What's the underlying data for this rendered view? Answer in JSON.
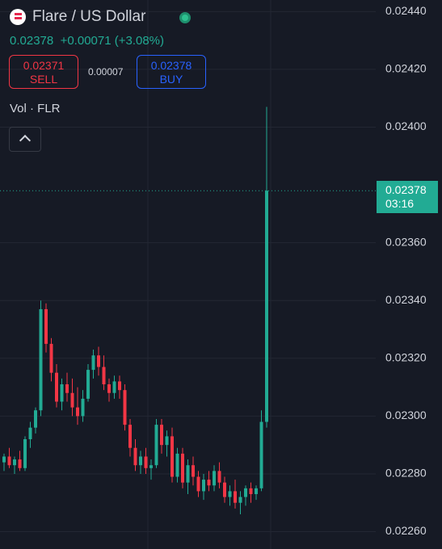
{
  "header": {
    "title": "Flare / US Dollar",
    "price": "0.02378",
    "change": "+0.00071 (+3.08%)"
  },
  "trade": {
    "sell_price": "0.02371",
    "sell_label": "SELL",
    "spread": "0.00007",
    "buy_price": "0.02378",
    "buy_label": "BUY"
  },
  "indicator": "Vol · FLR",
  "chart_data": {
    "type": "candlestick",
    "open": [
      0.02284,
      0.02286,
      0.02283,
      0.02285,
      0.02282,
      0.02292,
      0.02296,
      0.02302,
      0.02337,
      0.02325,
      0.02315,
      0.02305,
      0.02311,
      0.02308,
      0.02303,
      0.023,
      0.02306,
      0.02316,
      0.02321,
      0.02317,
      0.02311,
      0.02308,
      0.02312,
      0.02309,
      0.02297,
      0.02289,
      0.02283,
      0.02286,
      0.02282,
      0.02283,
      0.02297,
      0.0229,
      0.02293,
      0.02279,
      0.02287,
      0.02277,
      0.02283,
      0.02279,
      0.02274,
      0.02278,
      0.02276,
      0.02281,
      0.02277,
      0.02272,
      0.02274,
      0.0227,
      0.02272,
      0.02275,
      0.02273,
      0.02275,
      0.02298
    ],
    "high": [
      0.02287,
      0.02289,
      0.02286,
      0.02288,
      0.02293,
      0.02298,
      0.02303,
      0.0234,
      0.02339,
      0.02327,
      0.02318,
      0.02313,
      0.02315,
      0.02313,
      0.0231,
      0.02309,
      0.02318,
      0.02323,
      0.02324,
      0.02321,
      0.02313,
      0.02314,
      0.02314,
      0.02311,
      0.02299,
      0.02292,
      0.02288,
      0.02289,
      0.02285,
      0.02299,
      0.02299,
      0.02295,
      0.02296,
      0.02289,
      0.02289,
      0.02285,
      0.02286,
      0.02281,
      0.0228,
      0.02281,
      0.02283,
      0.02284,
      0.02279,
      0.02276,
      0.02278,
      0.02274,
      0.02276,
      0.02277,
      0.02276,
      0.02302,
      0.02407
    ],
    "low": [
      0.02281,
      0.02282,
      0.0228,
      0.02281,
      0.02281,
      0.02289,
      0.02294,
      0.023,
      0.02322,
      0.02312,
      0.02303,
      0.02302,
      0.02305,
      0.023,
      0.02297,
      0.02298,
      0.02305,
      0.02313,
      0.02314,
      0.02309,
      0.02305,
      0.02306,
      0.02306,
      0.02295,
      0.02286,
      0.02281,
      0.0228,
      0.0228,
      0.02278,
      0.02282,
      0.02287,
      0.02286,
      0.02277,
      0.02277,
      0.02275,
      0.02273,
      0.02276,
      0.02272,
      0.02271,
      0.02274,
      0.02274,
      0.02275,
      0.0227,
      0.02269,
      0.02268,
      0.02266,
      0.02269,
      0.0227,
      0.02271,
      0.02274,
      0.02296
    ],
    "close": [
      0.02286,
      0.02283,
      0.02285,
      0.02282,
      0.02292,
      0.02296,
      0.02302,
      0.02337,
      0.02325,
      0.02315,
      0.02305,
      0.02311,
      0.02308,
      0.02303,
      0.023,
      0.02306,
      0.02316,
      0.02321,
      0.02317,
      0.02311,
      0.02308,
      0.02312,
      0.02309,
      0.02297,
      0.02289,
      0.02283,
      0.02286,
      0.02282,
      0.02283,
      0.02297,
      0.0229,
      0.02293,
      0.02279,
      0.02287,
      0.02277,
      0.02283,
      0.02279,
      0.02274,
      0.02278,
      0.02276,
      0.02281,
      0.02277,
      0.02272,
      0.02274,
      0.0227,
      0.02272,
      0.02275,
      0.02273,
      0.02275,
      0.02298,
      0.02378
    ],
    "up_color": "#22ab94",
    "down_color": "#f23645",
    "ylim": [
      0.02254,
      0.02444
    ],
    "yticks": [
      {
        "value": 0.0244,
        "label": "0.02440"
      },
      {
        "value": 0.0242,
        "label": "0.02420"
      },
      {
        "value": 0.024,
        "label": "0.02400"
      },
      {
        "value": 0.0236,
        "label": "0.02360"
      },
      {
        "value": 0.0234,
        "label": "0.02340"
      },
      {
        "value": 0.0232,
        "label": "0.02320"
      },
      {
        "value": 0.023,
        "label": "0.02300"
      },
      {
        "value": 0.0228,
        "label": "0.02280"
      },
      {
        "value": 0.0226,
        "label": "0.02260"
      }
    ],
    "grid": true,
    "last_price_label": "0.02378",
    "countdown": "03:16"
  }
}
